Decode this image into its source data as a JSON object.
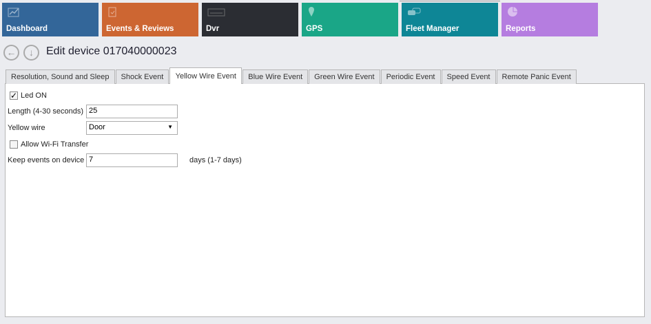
{
  "tiles": [
    {
      "label": "Dashboard",
      "icon": "chart-trend-icon",
      "color": "#336699"
    },
    {
      "label": "Events & Reviews",
      "icon": "clipboard-check-icon",
      "color": "#cd6632"
    },
    {
      "label": "Dvr",
      "icon": "dvr-device-icon",
      "color": "#2b2d33"
    },
    {
      "label": "GPS",
      "icon": "map-pin-icon",
      "color": "#1aa687"
    },
    {
      "label": "Fleet Manager",
      "icon": "cars-icon",
      "color": "#0e8696"
    },
    {
      "label": "Reports",
      "icon": "pie-chart-icon",
      "color": "#b57de0"
    }
  ],
  "header": {
    "title": "Edit device 017040000023"
  },
  "tabs": [
    "Resolution, Sound and Sleep",
    "Shock Event",
    "Yellow Wire Event",
    "Blue Wire Event",
    "Green Wire Event",
    "Periodic Event",
    "Speed Event",
    "Remote Panic Event"
  ],
  "form": {
    "led_label": "Led ON",
    "led_checked": true,
    "length_label": "Length (4-30 seconds)",
    "length_value": "25",
    "wire_label": "Yellow wire",
    "wire_value": "Door",
    "wifi_label": "Allow Wi-Fi Transfer",
    "wifi_checked": false,
    "keep_label": "Keep events on device",
    "keep_value": "7",
    "keep_suffix": "days (1-7 days)"
  }
}
